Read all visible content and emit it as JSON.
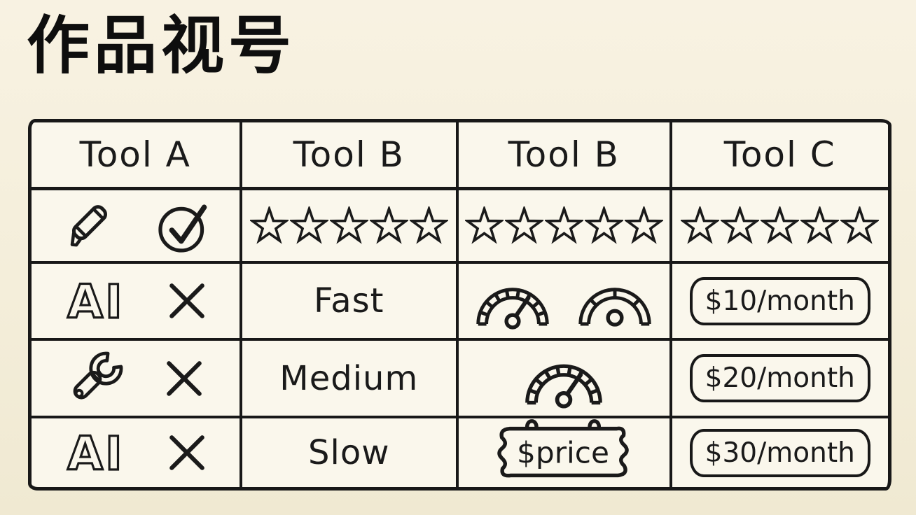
{
  "title": "作品视号",
  "ink_color": "#1a1a1a",
  "background_color": "#f4eeda",
  "cell_background": "#faf7ec",
  "table": {
    "headers": [
      {
        "label": "Tool A"
      },
      {
        "label": "Tool B"
      },
      {
        "label": "Tool B"
      },
      {
        "label": "Tool C"
      }
    ],
    "rows": [
      {
        "cells": [
          {
            "type": "icons",
            "icons": [
              "marker-pen-icon",
              "check-circle-icon"
            ]
          },
          {
            "type": "star-rating",
            "rating": 5,
            "max": 5
          },
          {
            "type": "star-rating",
            "rating": 5,
            "max": 5
          },
          {
            "type": "star-rating",
            "rating": 5,
            "max": 5
          }
        ]
      },
      {
        "cells": [
          {
            "type": "icons",
            "label": "AI",
            "icons": [
              "ai-letters-icon",
              "x-mark-icon"
            ]
          },
          {
            "type": "text",
            "text": "Fast"
          },
          {
            "type": "icons",
            "icons": [
              "speedometer-needle-icon",
              "speedometer-idle-icon"
            ]
          },
          {
            "type": "price-pill",
            "text": "$10/month"
          }
        ]
      },
      {
        "cells": [
          {
            "type": "icons",
            "icons": [
              "wrench-icon",
              "x-mark-icon"
            ]
          },
          {
            "type": "text",
            "text": "Medium"
          },
          {
            "type": "icons",
            "icons": [
              "speedometer-needle-icon"
            ]
          },
          {
            "type": "price-pill",
            "text": "$20/month"
          }
        ]
      },
      {
        "cells": [
          {
            "type": "icons",
            "label": "AI",
            "icons": [
              "ai-letters-icon",
              "x-mark-icon"
            ]
          },
          {
            "type": "text",
            "text": "Slow"
          },
          {
            "type": "price-sign",
            "text": "$price",
            "icons": [
              "price-sign-icon"
            ]
          },
          {
            "type": "price-pill",
            "text": "$30/month"
          }
        ]
      }
    ]
  }
}
